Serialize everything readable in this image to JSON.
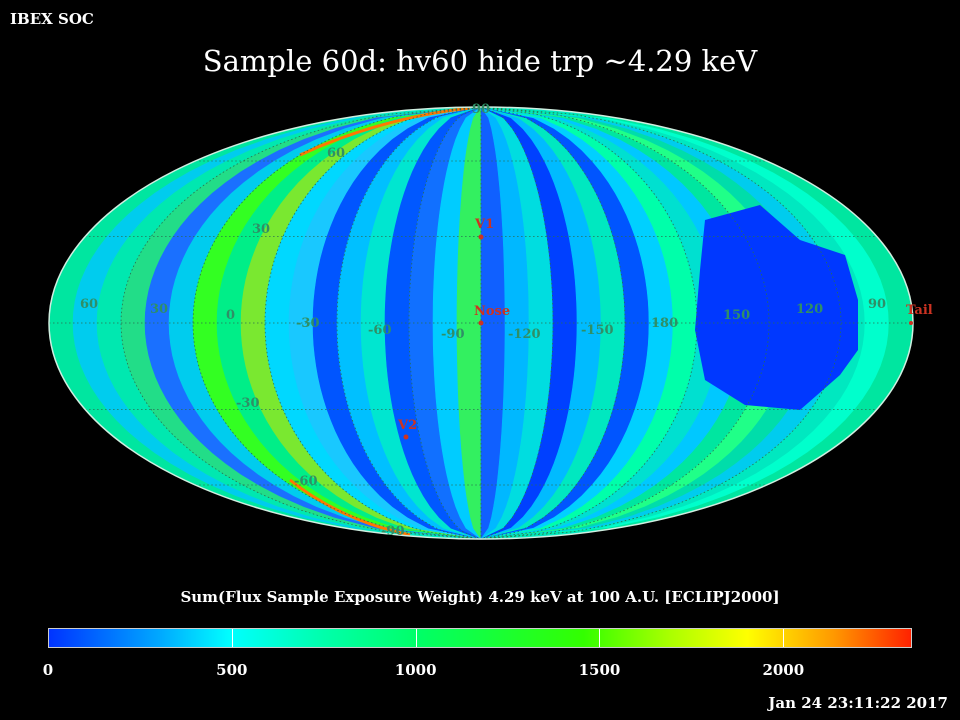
{
  "header": {
    "org": "IBEX SOC",
    "title": "Sample 60d: hv60 hide trp ~4.29 keV"
  },
  "map": {
    "projection": "Mollweide (ecliptic J2000)",
    "longitude_labels": [
      "60",
      "30",
      "0",
      "-30",
      "-60",
      "-90",
      "-120",
      "-150",
      "180",
      "150",
      "120",
      "90"
    ],
    "latitude_labels": [
      "90",
      "60",
      "30",
      "-30",
      "-60",
      "-90"
    ],
    "markers": [
      {
        "label": "V1",
        "color": "#cc3322"
      },
      {
        "label": "Nose",
        "color": "#cc3322"
      },
      {
        "label": "V2",
        "color": "#cc3322"
      },
      {
        "label": "Tail",
        "color": "#cc3322"
      }
    ],
    "label_color": "#2f8f66"
  },
  "colorbar": {
    "title": "Sum(Flux Sample Exposure Weight)  4.29 keV at 100 A.U. [ECLIPJ2000]",
    "min": 0,
    "max": 2350,
    "tick_labels": [
      "0",
      "500",
      "1000",
      "1500",
      "2000"
    ],
    "tick_values": [
      0,
      500,
      1000,
      1500,
      2000
    ],
    "stops": [
      "#0033ff",
      "#00aaff",
      "#00ffff",
      "#00ffaa",
      "#00ff66",
      "#33ff00",
      "#aaff00",
      "#ffff00",
      "#ff9900",
      "#ff2200"
    ]
  },
  "footer": {
    "timestamp": "Jan 24 23:11:22 2017"
  }
}
